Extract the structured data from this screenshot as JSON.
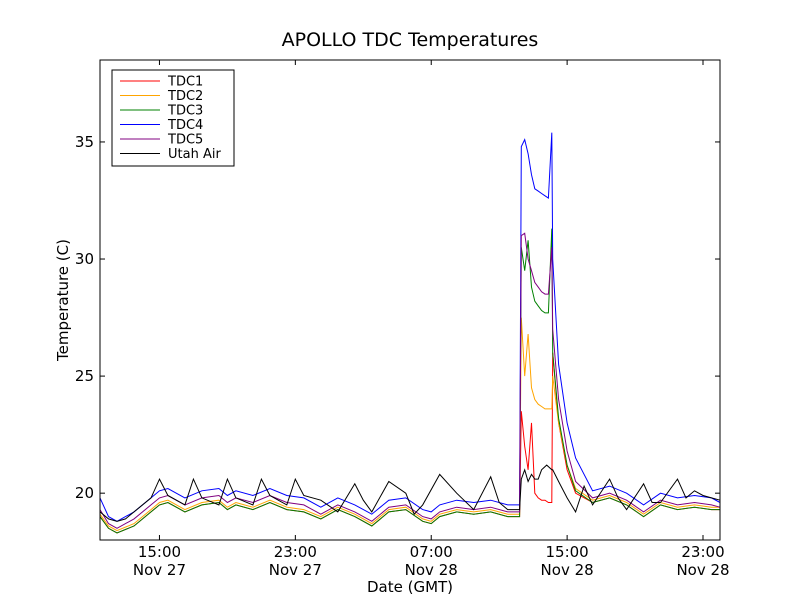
{
  "chart_data": {
    "type": "line",
    "title": "APOLLO TDC Temperatures",
    "xlabel": "Date (GMT)",
    "ylabel": "Temperature (C)",
    "x_unit": "hours since 2012-11-27 11:00 GMT",
    "xlim": [
      0,
      36.5
    ],
    "ylim": [
      18,
      38.5
    ],
    "grid": false,
    "legend_position": "top-left",
    "x_ticks": [
      {
        "value": 3.5,
        "time": "15:00",
        "date": "Nov 27"
      },
      {
        "value": 11.5,
        "time": "23:00",
        "date": "Nov 27"
      },
      {
        "value": 19.5,
        "time": "07:00",
        "date": "Nov 28"
      },
      {
        "value": 27.5,
        "time": "15:00",
        "date": "Nov 28"
      },
      {
        "value": 35.5,
        "time": "23:00",
        "date": "Nov 28"
      }
    ],
    "y_ticks": [
      20,
      25,
      30,
      35
    ],
    "series": [
      {
        "name": "TDC1",
        "color": "#ff0000",
        "x": [
          0,
          0.5,
          1,
          2,
          3,
          3.5,
          4,
          5,
          6,
          7,
          7.5,
          8,
          9,
          10,
          11,
          12,
          13,
          14,
          15,
          16,
          17,
          18,
          19,
          19.5,
          20,
          21,
          22,
          23,
          24,
          24.7,
          24.8,
          25,
          25.2,
          25.4,
          25.6,
          25.8,
          26,
          26.2,
          26.4,
          26.6,
          26.65,
          27,
          27.5,
          28,
          29,
          30,
          31,
          32,
          33,
          34,
          35,
          36,
          36.5
        ],
        "y": [
          19,
          18.5,
          18.3,
          18.6,
          19.2,
          19.5,
          19.6,
          19.2,
          19.5,
          19.6,
          19.3,
          19.5,
          19.3,
          19.6,
          19.3,
          19.2,
          18.9,
          19.3,
          19.0,
          18.6,
          19.2,
          19.3,
          18.8,
          18.7,
          19.0,
          19.2,
          19.1,
          19.2,
          19.0,
          19.0,
          23.5,
          22.0,
          21.0,
          23.0,
          20.0,
          19.8,
          19.7,
          19.7,
          19.6,
          19.6,
          26.0,
          23.0,
          21.0,
          20.0,
          19.6,
          19.8,
          19.5,
          19.0,
          19.5,
          19.3,
          19.4,
          19.3,
          19.3
        ]
      },
      {
        "name": "TDC2",
        "color": "#ffa500",
        "x": [
          0,
          0.5,
          1,
          2,
          3,
          3.5,
          4,
          5,
          6,
          7,
          7.5,
          8,
          9,
          10,
          11,
          12,
          13,
          14,
          15,
          16,
          17,
          18,
          19,
          19.5,
          20,
          21,
          22,
          23,
          24,
          24.7,
          24.8,
          25,
          25.2,
          25.4,
          25.6,
          25.8,
          26,
          26.2,
          26.4,
          26.6,
          26.65,
          27,
          27.5,
          28,
          29,
          30,
          31,
          32,
          33,
          34,
          35,
          36,
          36.5
        ],
        "y": [
          19.1,
          18.6,
          18.4,
          18.7,
          19.3,
          19.6,
          19.7,
          19.3,
          19.6,
          19.7,
          19.4,
          19.6,
          19.4,
          19.7,
          19.4,
          19.3,
          19.0,
          19.4,
          19.1,
          18.7,
          19.3,
          19.4,
          18.9,
          18.8,
          19.1,
          19.3,
          19.2,
          19.3,
          19.1,
          19.1,
          27.5,
          25.0,
          26.8,
          24.5,
          24.0,
          23.8,
          23.7,
          23.6,
          23.6,
          23.6,
          25.0,
          23.0,
          21.2,
          20.2,
          19.7,
          19.9,
          19.6,
          19.1,
          19.6,
          19.4,
          19.5,
          19.4,
          19.4
        ]
      },
      {
        "name": "TDC3",
        "color": "#008000",
        "x": [
          0,
          0.5,
          1,
          2,
          3,
          3.5,
          4,
          5,
          6,
          7,
          7.5,
          8,
          9,
          10,
          11,
          12,
          13,
          14,
          15,
          16,
          17,
          18,
          19,
          19.5,
          20,
          21,
          22,
          23,
          24,
          24.7,
          24.8,
          25,
          25.2,
          25.4,
          25.6,
          25.8,
          26,
          26.2,
          26.4,
          26.6,
          26.65,
          27,
          27.5,
          28,
          29,
          30,
          31,
          32,
          33,
          34,
          35,
          36,
          36.5
        ],
        "y": [
          19.0,
          18.5,
          18.3,
          18.6,
          19.2,
          19.5,
          19.6,
          19.2,
          19.5,
          19.6,
          19.3,
          19.5,
          19.3,
          19.6,
          19.3,
          19.2,
          18.9,
          19.3,
          19.0,
          18.6,
          19.2,
          19.3,
          18.8,
          18.7,
          19.0,
          19.2,
          19.1,
          19.2,
          19.0,
          19.0,
          30.5,
          29.5,
          30.8,
          28.8,
          28.2,
          28.0,
          27.8,
          27.7,
          27.7,
          31.3,
          26.0,
          23.2,
          21.2,
          20.1,
          19.6,
          19.8,
          19.5,
          19.0,
          19.5,
          19.3,
          19.4,
          19.3,
          19.3
        ]
      },
      {
        "name": "TDC4",
        "color": "#0000ff",
        "x": [
          0,
          0.5,
          1,
          2,
          3,
          3.5,
          4,
          5,
          6,
          7,
          7.5,
          8,
          9,
          10,
          11,
          12,
          13,
          14,
          15,
          16,
          17,
          18,
          19,
          19.5,
          20,
          21,
          22,
          23,
          24,
          24.7,
          24.8,
          25,
          25.2,
          25.4,
          25.6,
          25.8,
          26,
          26.2,
          26.4,
          26.6,
          26.65,
          27,
          27.5,
          28,
          29,
          30,
          31,
          32,
          33,
          34,
          35,
          36,
          36.5
        ],
        "y": [
          19.8,
          19.0,
          18.8,
          19.2,
          19.8,
          20.1,
          20.2,
          19.8,
          20.1,
          20.2,
          19.9,
          20.1,
          19.9,
          20.2,
          19.9,
          19.8,
          19.4,
          19.8,
          19.5,
          19.1,
          19.7,
          19.8,
          19.3,
          19.2,
          19.5,
          19.7,
          19.6,
          19.7,
          19.5,
          19.5,
          34.8,
          35.1,
          34.5,
          33.6,
          33.0,
          32.9,
          32.8,
          32.7,
          32.6,
          35.4,
          30.0,
          25.5,
          23.0,
          21.5,
          20.1,
          20.3,
          20.0,
          19.5,
          20.0,
          19.8,
          19.9,
          19.8,
          19.6
        ]
      },
      {
        "name": "TDC5",
        "color": "#800080",
        "x": [
          0,
          0.5,
          1,
          2,
          3,
          3.5,
          4,
          5,
          6,
          7,
          7.5,
          8,
          9,
          10,
          11,
          12,
          13,
          14,
          15,
          16,
          17,
          18,
          19,
          19.5,
          20,
          21,
          22,
          23,
          24,
          24.7,
          24.8,
          25,
          25.2,
          25.4,
          25.6,
          25.8,
          26,
          26.2,
          26.4,
          26.6,
          26.65,
          27,
          27.5,
          28,
          29,
          30,
          31,
          32,
          33,
          34,
          35,
          36,
          36.5
        ],
        "y": [
          19.3,
          18.7,
          18.5,
          18.9,
          19.5,
          19.8,
          19.9,
          19.5,
          19.8,
          19.9,
          19.6,
          19.8,
          19.6,
          19.9,
          19.6,
          19.5,
          19.1,
          19.5,
          19.2,
          18.8,
          19.4,
          19.5,
          19.0,
          18.9,
          19.2,
          19.4,
          19.3,
          19.4,
          19.2,
          19.2,
          31.0,
          31.1,
          30.0,
          29.5,
          29.0,
          28.8,
          28.6,
          28.5,
          28.5,
          30.5,
          27.0,
          24.0,
          21.8,
          20.5,
          19.8,
          20.0,
          19.7,
          19.2,
          19.7,
          19.5,
          19.6,
          19.5,
          19.4
        ]
      },
      {
        "name": "Utah Air",
        "color": "#000000",
        "x": [
          0,
          0.5,
          1,
          1.5,
          2,
          3,
          3.5,
          4,
          5,
          5.5,
          6,
          7,
          7.5,
          8,
          9,
          9.5,
          10,
          11,
          11.5,
          12,
          13,
          14,
          15,
          15.5,
          16,
          17,
          18,
          18.5,
          19,
          20,
          21,
          22,
          23,
          23.5,
          24,
          24.7,
          24.8,
          25,
          25.2,
          25.4,
          25.6,
          25.8,
          26,
          26.3,
          26.6,
          26.65,
          27,
          27.5,
          28,
          28.5,
          29,
          30,
          30.5,
          31,
          32,
          32.5,
          33,
          34,
          34.5,
          35,
          35.5,
          36,
          36.5
        ],
        "y": [
          19.2,
          18.9,
          18.8,
          18.9,
          19.2,
          19.8,
          20.6,
          19.9,
          19.5,
          20.6,
          19.8,
          19.5,
          20.6,
          19.8,
          19.5,
          20.6,
          19.9,
          19.5,
          20.6,
          19.9,
          19.7,
          19.2,
          20.4,
          19.7,
          19.2,
          20.5,
          20.0,
          19.1,
          19.5,
          20.8,
          20.0,
          19.3,
          20.7,
          19.6,
          19.3,
          19.3,
          20.6,
          21.0,
          20.5,
          20.8,
          20.6,
          20.6,
          21.0,
          21.2,
          21.0,
          21.0,
          20.5,
          19.8,
          19.2,
          20.3,
          19.5,
          20.6,
          19.8,
          19.3,
          20.4,
          19.6,
          19.6,
          20.6,
          19.8,
          20.1,
          19.9,
          19.8,
          19.7
        ]
      }
    ]
  }
}
